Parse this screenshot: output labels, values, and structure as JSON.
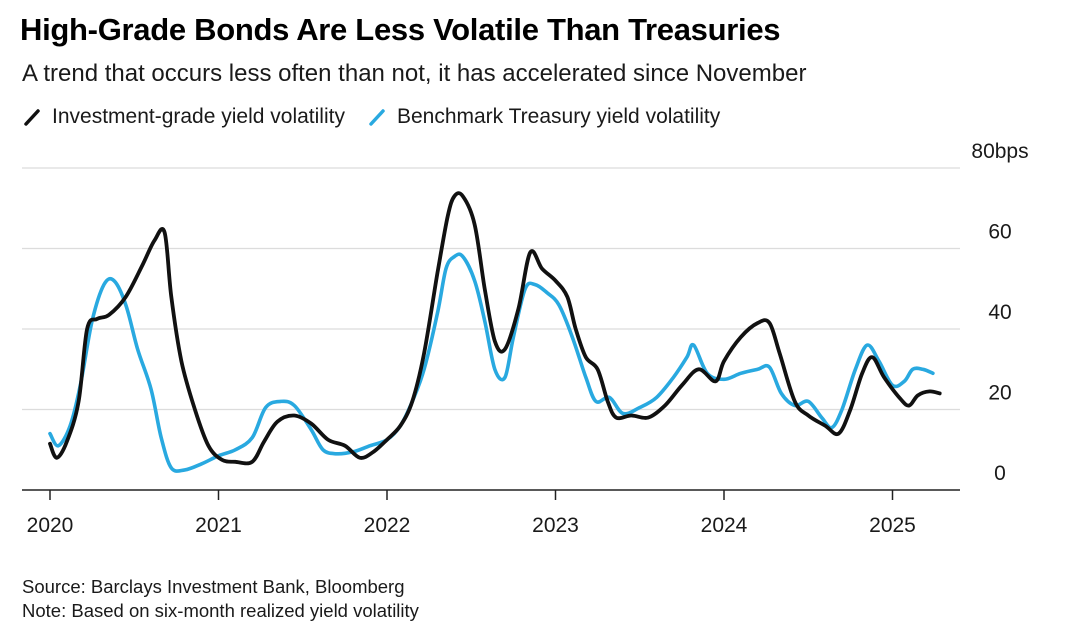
{
  "header": {
    "title": "High-Grade Bonds Are Less Volatile Than Treasuries",
    "subtitle": "A trend that occurs less often than not, it has accelerated since November"
  },
  "footer": {
    "source": "Source: Barclays Investment Bank, Bloomberg",
    "note": "Note: Based on six-month realized yield volatility"
  },
  "colors": {
    "investment_grade": "#111111",
    "treasury": "#29a9e0",
    "grid": "#dcdcdc",
    "axis": "#222222"
  },
  "chart_data": {
    "type": "line",
    "title": "High-Grade Bonds Are Less Volatile Than Treasuries",
    "xlabel": "",
    "ylabel": "bps",
    "ylim": [
      0,
      80
    ],
    "xlim": [
      2020.0,
      2025.5
    ],
    "yticks": [
      {
        "value": 0,
        "label": "0"
      },
      {
        "value": 20,
        "label": "20"
      },
      {
        "value": 40,
        "label": "40"
      },
      {
        "value": 60,
        "label": "60"
      },
      {
        "value": 80,
        "label": "80bps"
      }
    ],
    "xticks": [
      {
        "value": 2020,
        "label": "2020"
      },
      {
        "value": 2021,
        "label": "2021"
      },
      {
        "value": 2022,
        "label": "2022"
      },
      {
        "value": 2023,
        "label": "2023"
      },
      {
        "value": 2024,
        "label": "2024"
      },
      {
        "value": 2025,
        "label": "2025"
      }
    ],
    "grid": true,
    "legend_position": "top-left",
    "series": [
      {
        "name": "Investment-grade yield volatility",
        "color": "#111111",
        "points": [
          [
            2020.0,
            11.5
          ],
          [
            2020.04,
            8
          ],
          [
            2020.1,
            12
          ],
          [
            2020.17,
            22
          ],
          [
            2020.22,
            40
          ],
          [
            2020.28,
            42.5
          ],
          [
            2020.35,
            43.5
          ],
          [
            2020.45,
            48
          ],
          [
            2020.55,
            56
          ],
          [
            2020.62,
            62
          ],
          [
            2020.68,
            64
          ],
          [
            2020.72,
            48
          ],
          [
            2020.78,
            32
          ],
          [
            2020.86,
            20
          ],
          [
            2020.94,
            11
          ],
          [
            2021.02,
            7.5
          ],
          [
            2021.1,
            7
          ],
          [
            2021.2,
            7
          ],
          [
            2021.27,
            12
          ],
          [
            2021.35,
            17
          ],
          [
            2021.45,
            18.5
          ],
          [
            2021.55,
            16.5
          ],
          [
            2021.65,
            12.5
          ],
          [
            2021.75,
            11
          ],
          [
            2021.84,
            8
          ],
          [
            2021.92,
            9.5
          ],
          [
            2022.0,
            12.5
          ],
          [
            2022.08,
            16
          ],
          [
            2022.15,
            22
          ],
          [
            2022.22,
            34
          ],
          [
            2022.3,
            54
          ],
          [
            2022.36,
            68
          ],
          [
            2022.4,
            73
          ],
          [
            2022.45,
            73
          ],
          [
            2022.52,
            66
          ],
          [
            2022.58,
            50
          ],
          [
            2022.64,
            37
          ],
          [
            2022.7,
            35
          ],
          [
            2022.78,
            45
          ],
          [
            2022.85,
            59
          ],
          [
            2022.92,
            55
          ],
          [
            2023.0,
            52
          ],
          [
            2023.07,
            48
          ],
          [
            2023.12,
            40
          ],
          [
            2023.18,
            33
          ],
          [
            2023.25,
            30
          ],
          [
            2023.31,
            22
          ],
          [
            2023.36,
            18
          ],
          [
            2023.45,
            18.5
          ],
          [
            2023.55,
            18
          ],
          [
            2023.65,
            21
          ],
          [
            2023.75,
            26
          ],
          [
            2023.85,
            30
          ],
          [
            2023.95,
            27
          ],
          [
            2024.0,
            32
          ],
          [
            2024.1,
            38
          ],
          [
            2024.2,
            41.5
          ],
          [
            2024.27,
            41.5
          ],
          [
            2024.33,
            34
          ],
          [
            2024.42,
            22
          ],
          [
            2024.5,
            18.5
          ],
          [
            2024.6,
            16
          ],
          [
            2024.68,
            14
          ],
          [
            2024.75,
            20
          ],
          [
            2024.82,
            29
          ],
          [
            2024.88,
            33
          ],
          [
            2024.95,
            28
          ],
          [
            2025.05,
            22.5
          ],
          [
            2025.1,
            21
          ],
          [
            2025.15,
            23.5
          ],
          [
            2025.22,
            24.5
          ],
          [
            2025.28,
            24
          ]
        ]
      },
      {
        "name": "Benchmark Treasury yield volatility",
        "color": "#29a9e0",
        "points": [
          [
            2020.0,
            14
          ],
          [
            2020.05,
            11
          ],
          [
            2020.12,
            16
          ],
          [
            2020.18,
            26
          ],
          [
            2020.25,
            42
          ],
          [
            2020.32,
            51
          ],
          [
            2020.38,
            52
          ],
          [
            2020.45,
            46
          ],
          [
            2020.52,
            35
          ],
          [
            2020.6,
            25
          ],
          [
            2020.66,
            13
          ],
          [
            2020.72,
            5.5
          ],
          [
            2020.8,
            5
          ],
          [
            2020.9,
            6.5
          ],
          [
            2021.0,
            8.5
          ],
          [
            2021.1,
            10
          ],
          [
            2021.2,
            13
          ],
          [
            2021.28,
            20.5
          ],
          [
            2021.37,
            22
          ],
          [
            2021.45,
            21
          ],
          [
            2021.55,
            15
          ],
          [
            2021.62,
            10
          ],
          [
            2021.7,
            9
          ],
          [
            2021.8,
            9.5
          ],
          [
            2021.9,
            11
          ],
          [
            2022.0,
            12.5
          ],
          [
            2022.08,
            16
          ],
          [
            2022.15,
            22
          ],
          [
            2022.22,
            30
          ],
          [
            2022.3,
            44
          ],
          [
            2022.35,
            55
          ],
          [
            2022.4,
            58
          ],
          [
            2022.45,
            58
          ],
          [
            2022.52,
            52
          ],
          [
            2022.58,
            42
          ],
          [
            2022.64,
            30
          ],
          [
            2022.7,
            28
          ],
          [
            2022.75,
            38
          ],
          [
            2022.82,
            50
          ],
          [
            2022.88,
            51
          ],
          [
            2022.95,
            49
          ],
          [
            2023.02,
            46
          ],
          [
            2023.1,
            38
          ],
          [
            2023.18,
            28
          ],
          [
            2023.24,
            22
          ],
          [
            2023.32,
            23
          ],
          [
            2023.4,
            19
          ],
          [
            2023.5,
            20.5
          ],
          [
            2023.6,
            23
          ],
          [
            2023.7,
            28
          ],
          [
            2023.78,
            33
          ],
          [
            2023.82,
            36
          ],
          [
            2023.9,
            29
          ],
          [
            2024.0,
            27.5
          ],
          [
            2024.1,
            29
          ],
          [
            2024.2,
            30
          ],
          [
            2024.27,
            30.5
          ],
          [
            2024.34,
            24
          ],
          [
            2024.42,
            21
          ],
          [
            2024.5,
            22
          ],
          [
            2024.58,
            18
          ],
          [
            2024.64,
            15.5
          ],
          [
            2024.7,
            20
          ],
          [
            2024.78,
            30
          ],
          [
            2024.85,
            36
          ],
          [
            2024.92,
            32
          ],
          [
            2025.0,
            26
          ],
          [
            2025.07,
            27
          ],
          [
            2025.12,
            30
          ],
          [
            2025.18,
            30
          ],
          [
            2025.24,
            29
          ]
        ]
      }
    ]
  }
}
